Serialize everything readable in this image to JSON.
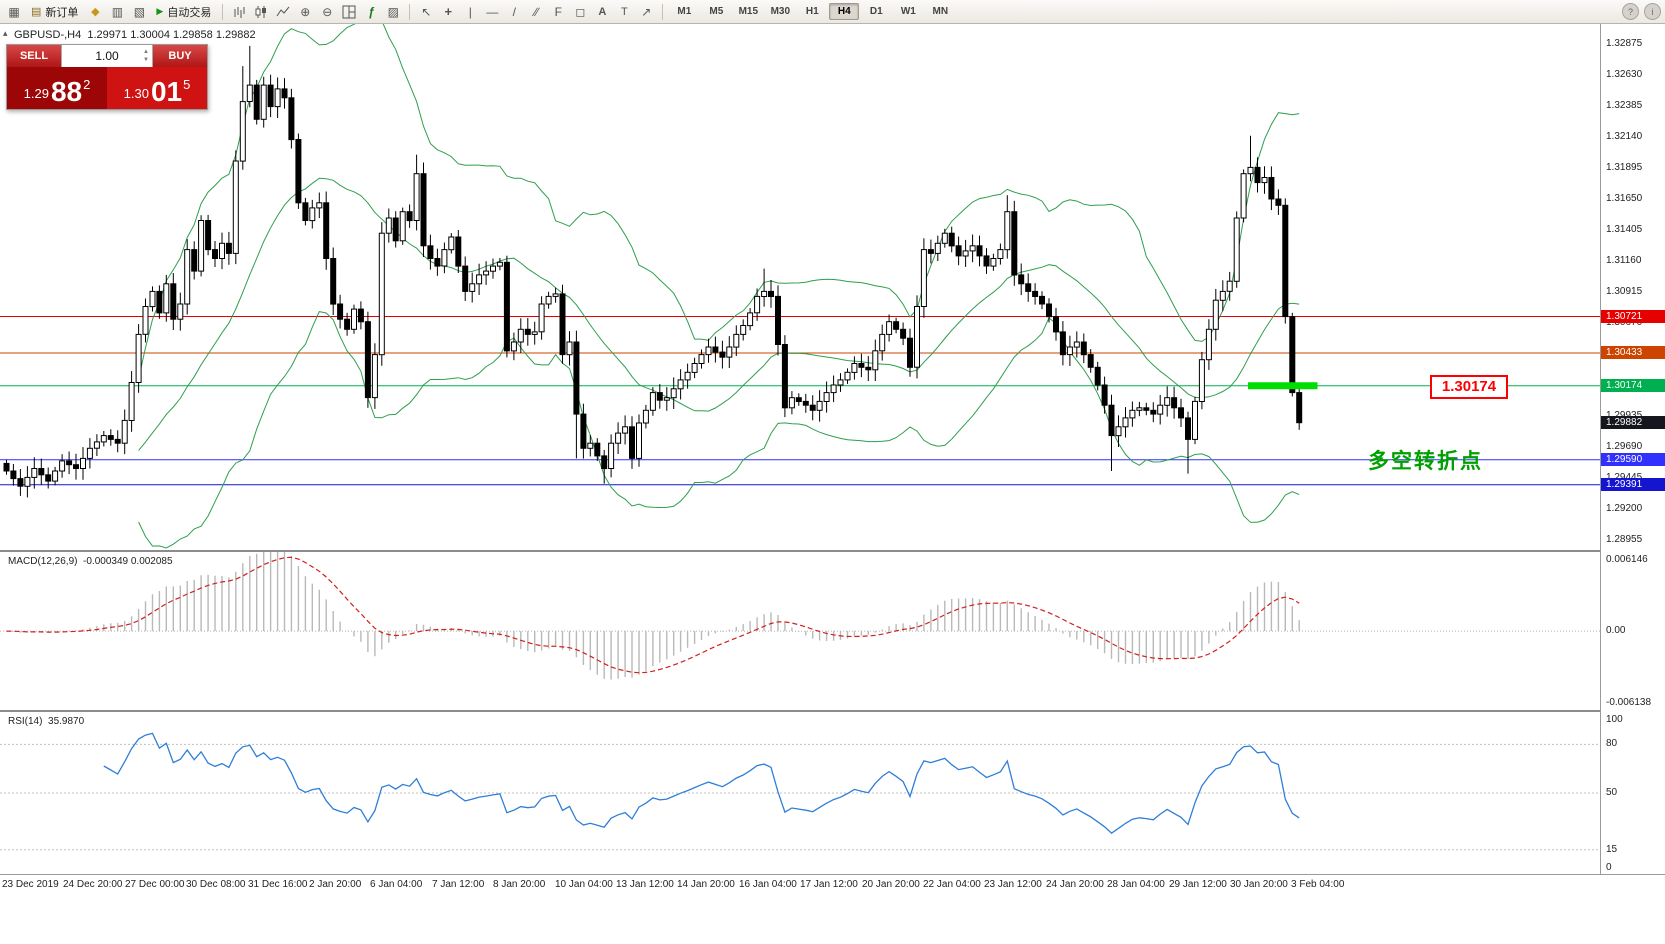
{
  "title": {
    "symbol_period": "GBPUSD-,H4",
    "ohlc": "1.29971 1.30004 1.29858 1.29882"
  },
  "one_click": {
    "sell_label": "SELL",
    "buy_label": "BUY",
    "volume": "1.00",
    "sell_price": {
      "small": "1.29",
      "big": "88",
      "sup": "2"
    },
    "buy_price": {
      "small": "1.30",
      "big": "01",
      "sup": "5"
    }
  },
  "toolbar": {
    "groups": [
      {
        "items": [
          {
            "name": "terminal-icon",
            "glyph": "win"
          },
          {
            "name": "new-order-button",
            "glyph": "neworder",
            "label": "新订单"
          },
          {
            "name": "mql5-icon",
            "glyph": "diamond"
          },
          {
            "name": "data-window-icon",
            "glyph": "grid"
          },
          {
            "name": "navigator-icon",
            "glyph": "grid2"
          },
          {
            "name": "autotrading-button",
            "glyph": "play",
            "label": "自动交易"
          }
        ]
      },
      {
        "items": [
          {
            "name": "bar-chart-icon",
            "glyph": "bars"
          },
          {
            "name": "candlestick-chart-icon",
            "glyph": "candles"
          },
          {
            "name": "line-chart-icon",
            "glyph": "linechart"
          },
          {
            "name": "zoom-in-icon",
            "glyph": "zoomin"
          },
          {
            "name": "zoom-out-icon",
            "glyph": "zoomout"
          },
          {
            "name": "tile-windows-icon",
            "glyph": "tile"
          },
          {
            "name": "indicators-icon",
            "glyph": "fx"
          },
          {
            "name": "templates-icon",
            "glyph": "template"
          }
        ]
      },
      {
        "items": [
          {
            "name": "cursor-icon",
            "glyph": "cursor"
          },
          {
            "name": "crosshair-icon",
            "glyph": "cross"
          },
          {
            "name": "vertical-line-icon",
            "glyph": "vline"
          },
          {
            "name": "horizontal-line-icon",
            "glyph": "hline"
          },
          {
            "name": "trendline-icon",
            "glyph": "trend"
          },
          {
            "name": "channel-icon",
            "glyph": "channel"
          },
          {
            "name": "fibonacci-icon",
            "glyph": "fibo"
          },
          {
            "name": "shapes-icon",
            "glyph": "shapes"
          },
          {
            "name": "text-icon",
            "glyph": "textA"
          },
          {
            "name": "label-icon",
            "glyph": "labelT"
          },
          {
            "name": "arrows-icon",
            "glyph": "arrow"
          }
        ]
      }
    ],
    "timeframes": [
      "M1",
      "M5",
      "M15",
      "M30",
      "H1",
      "H4",
      "D1",
      "W1",
      "MN"
    ],
    "active_timeframe": "H4",
    "right_icons": [
      {
        "name": "help-icon",
        "glyph": "?"
      },
      {
        "name": "community-icon",
        "glyph": "i"
      }
    ]
  },
  "chart_data": {
    "type": "candlestick",
    "symbol": "GBPUSD-",
    "timeframe": "H4",
    "ohlc_current": {
      "open": 1.29971,
      "high": 1.30004,
      "low": 1.29858,
      "close": 1.29882
    },
    "first_open": 1.2956,
    "closes": [
      1.295,
      1.2944,
      1.2938,
      1.2945,
      1.2952,
      1.2947,
      1.2942,
      1.295,
      1.2958,
      1.2955,
      1.2952,
      1.296,
      1.2968,
      1.2973,
      1.2978,
      1.2975,
      1.2972,
      1.299,
      1.302,
      1.3058,
      1.308,
      1.3092,
      1.3075,
      1.3098,
      1.307,
      1.3082,
      1.3125,
      1.3108,
      1.3148,
      1.3125,
      1.3118,
      1.313,
      1.3122,
      1.3195,
      1.3242,
      1.3255,
      1.3228,
      1.3255,
      1.3238,
      1.3252,
      1.3245,
      1.3212,
      1.3162,
      1.3148,
      1.3158,
      1.3162,
      1.3118,
      1.3082,
      1.307,
      1.3062,
      1.3078,
      1.3068,
      1.3008,
      1.3042,
      1.3138,
      1.315,
      1.3132,
      1.3155,
      1.3148,
      1.3185,
      1.3128,
      1.3118,
      1.3112,
      1.3125,
      1.3135,
      1.3112,
      1.3092,
      1.3098,
      1.3105,
      1.3108,
      1.3112,
      1.3115,
      1.3045,
      1.3052,
      1.3062,
      1.3058,
      1.306,
      1.3082,
      1.3088,
      1.309,
      1.3042,
      1.3052,
      1.2995,
      1.2968,
      1.2972,
      1.2962,
      1.2952,
      1.2972,
      1.298,
      1.2985,
      1.296,
      1.2988,
      1.2998,
      1.3012,
      1.3006,
      1.3008,
      1.3015,
      1.3022,
      1.3028,
      1.3035,
      1.3042,
      1.3048,
      1.3044,
      1.304,
      1.3048,
      1.3058,
      1.3065,
      1.3075,
      1.3088,
      1.3092,
      1.3088,
      1.305,
      1.3,
      1.3008,
      1.3005,
      1.3002,
      1.2998,
      1.3005,
      1.3012,
      1.3018,
      1.3022,
      1.3028,
      1.3035,
      1.3032,
      1.303,
      1.3045,
      1.3058,
      1.3068,
      1.3062,
      1.3055,
      1.3032,
      1.308,
      1.3125,
      1.3122,
      1.313,
      1.3138,
      1.3128,
      1.312,
      1.3124,
      1.3128,
      1.312,
      1.3112,
      1.3118,
      1.3125,
      1.3155,
      1.3105,
      1.3098,
      1.3092,
      1.3088,
      1.3082,
      1.3072,
      1.306,
      1.3042,
      1.3048,
      1.3052,
      1.3042,
      1.3032,
      1.3018,
      1.3002,
      1.2978,
      1.2985,
      1.2992,
      1.2998,
      1.3,
      1.2998,
      1.2995,
      1.3002,
      1.3008,
      1.3,
      1.2992,
      1.2975,
      1.3005,
      1.3038,
      1.3062,
      1.3085,
      1.3092,
      1.31,
      1.315,
      1.3185,
      1.319,
      1.3178,
      1.3182,
      1.3165,
      1.316,
      1.3072,
      1.3012,
      1.29882
    ],
    "wick_overrides": {
      "34": {
        "h": 1.327
      },
      "35": {
        "h": 1.3286
      },
      "52": {
        "l": 1.3
      },
      "59": {
        "h": 1.32
      },
      "82": {
        "l": 1.296
      },
      "86": {
        "l": 1.294
      },
      "109": {
        "h": 1.311
      },
      "112": {
        "l": 1.2995
      },
      "144": {
        "h": 1.3168
      },
      "159": {
        "l": 1.295
      },
      "170": {
        "l": 1.2948
      },
      "179": {
        "h": 1.3215
      },
      "186": {
        "l": 1.29858,
        "h": 1.30004
      }
    },
    "indicators": {
      "bollinger": {
        "period": 20,
        "deviation": 2,
        "color": "#2f9e4f"
      },
      "macd": {
        "label": "MACD(12,26,9)",
        "value_text": "-0.000349 0.002085",
        "fast": 12,
        "slow": 26,
        "signal": 9,
        "axis_labels": [
          "0.006146",
          "0.00",
          "-0.006138"
        ],
        "axis_max": 0.006146,
        "axis_min": -0.006138,
        "histogram_color": "#b9b9b9",
        "signal_color": "#d02020"
      },
      "rsi": {
        "label": "RSI(14)",
        "value_text": "35.9870",
        "period": 14,
        "axis_labels": [
          {
            "v": 100,
            "t": "100"
          },
          {
            "v": 80,
            "t": "80"
          },
          {
            "v": 50,
            "t": "50"
          },
          {
            "v": 15,
            "t": "15"
          },
          {
            "v": 0,
            "t": "0"
          }
        ],
        "levels": [
          80,
          50,
          15
        ],
        "line_color": "#2f7ed8"
      }
    },
    "price_axis": {
      "tick_min": 1.28955,
      "tick_step": 0.00245,
      "tick_count": 17,
      "badges": [
        {
          "text": "1.30721",
          "price": 1.30721,
          "bg": "#e60000"
        },
        {
          "text": "1.30433",
          "price": 1.30433,
          "bg": "#cc4400"
        },
        {
          "text": "1.30174",
          "price": 1.30174,
          "bg": "#00b050"
        },
        {
          "text": "1.29882",
          "price": 1.29882,
          "bg": "#16161e",
          "current": true
        },
        {
          "text": "1.29590",
          "price": 1.2959,
          "bg": "#3030ff"
        },
        {
          "text": "1.29391",
          "price": 1.29391,
          "bg": "#1515d0"
        }
      ]
    },
    "hlines": [
      {
        "price": 1.30721,
        "color": "#e60000"
      },
      {
        "price": 1.30433,
        "color": "#cc4400"
      },
      {
        "price": 1.30174,
        "color": "#00b050"
      },
      {
        "price": 1.2959,
        "color": "#3030ff"
      },
      {
        "price": 1.29391,
        "color": "#1515d0"
      }
    ],
    "highlight": {
      "price": 1.30174,
      "from_index": 179,
      "to_index": 189,
      "color": "#00dd00"
    },
    "annotations": {
      "price_label": "1.30174",
      "turning_point": "多空转折点"
    },
    "time_axis": [
      "23 Dec 2019",
      "24 Dec 20:00",
      "27 Dec 00:00",
      "30 Dec 08:00",
      "31 Dec 16:00",
      "2 Jan 20:00",
      "6 Jan 04:00",
      "7 Jan 12:00",
      "8 Jan 20:00",
      "10 Jan 04:00",
      "13 Jan 12:00",
      "14 Jan 20:00",
      "16 Jan 04:00",
      "17 Jan 12:00",
      "20 Jan 20:00",
      "22 Jan 04:00",
      "23 Jan 12:00",
      "24 Jan 20:00",
      "28 Jan 04:00",
      "29 Jan 12:00",
      "30 Jan 20:00",
      "3 Feb 04:00"
    ]
  }
}
